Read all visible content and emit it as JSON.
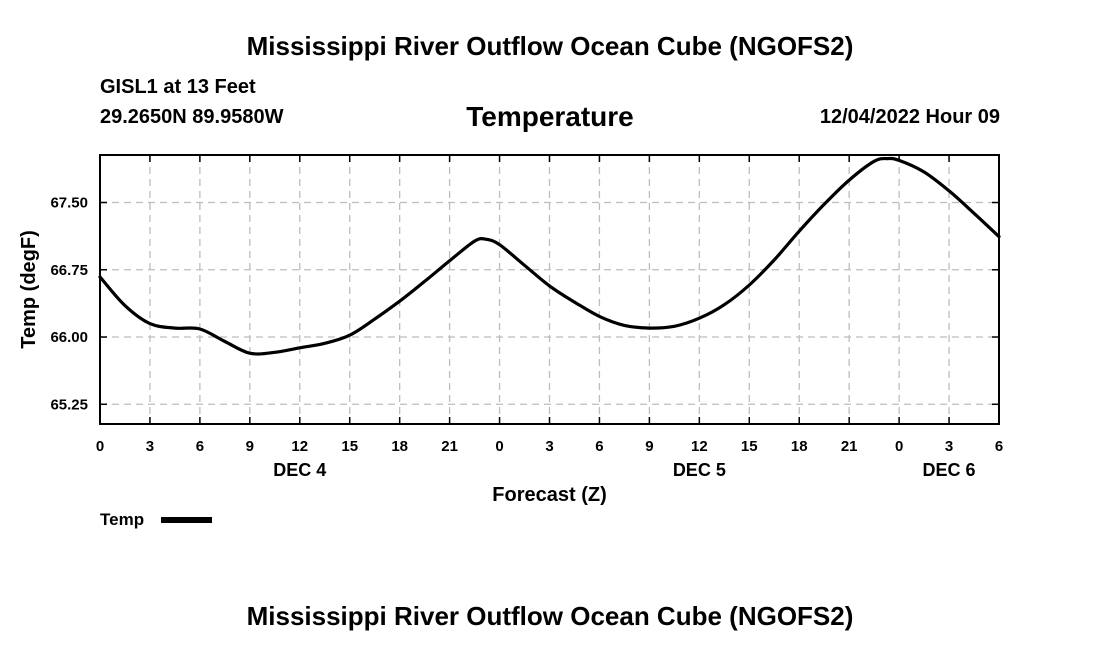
{
  "header": {
    "title": "Mississippi River Outflow Ocean Cube (NGOFS2)",
    "station": "GISL1 at 13 Feet",
    "coords": "29.2650N  89.9580W",
    "variable": "Temperature",
    "datetime": "12/04/2022 Hour 09"
  },
  "footer": {
    "title": "Mississippi River Outflow Ocean Cube (NGOFS2)"
  },
  "chart_data": {
    "type": "line",
    "title": "Temperature",
    "xlabel": "Forecast (Z)",
    "ylabel": "Temp (degF)",
    "xlim": [
      0,
      54
    ],
    "ylim": [
      65.03,
      68.03
    ],
    "yticks": [
      65.25,
      66.0,
      66.75,
      67.5
    ],
    "ytick_labels": [
      "65.25",
      "66.00",
      "66.75",
      "67.50"
    ],
    "xticks": [
      0,
      3,
      6,
      9,
      12,
      15,
      18,
      21,
      24,
      27,
      30,
      33,
      36,
      39,
      42,
      45,
      48,
      51,
      54
    ],
    "xtick_labels": [
      "0",
      "3",
      "6",
      "9",
      "12",
      "15",
      "18",
      "21",
      "0",
      "3",
      "6",
      "9",
      "12",
      "15",
      "18",
      "21",
      "0",
      "3",
      "6"
    ],
    "day_labels": [
      {
        "x": 12,
        "label": "DEC 4"
      },
      {
        "x": 36,
        "label": "DEC 5"
      },
      {
        "x": 51,
        "label": "DEC 6"
      }
    ],
    "grid": true,
    "legend": {
      "position": "bottom-left",
      "entries": [
        "Temp"
      ]
    },
    "series": [
      {
        "name": "Temp",
        "x": [
          0,
          1.5,
          3,
          4.5,
          6,
          7.5,
          9,
          10.5,
          12,
          13.5,
          15,
          16.5,
          18,
          19.5,
          21,
          22.5,
          23.2,
          24,
          25.5,
          27,
          28.5,
          30,
          31.5,
          33,
          34.5,
          36,
          37.5,
          39,
          40.5,
          42,
          43.5,
          45,
          46.5,
          47.3,
          48,
          49.5,
          51,
          52.5,
          54
        ],
        "values": [
          66.67,
          66.35,
          66.15,
          66.1,
          66.09,
          65.95,
          65.82,
          65.83,
          65.88,
          65.93,
          66.02,
          66.2,
          66.4,
          66.62,
          66.85,
          67.07,
          67.09,
          67.03,
          66.8,
          66.57,
          66.39,
          66.23,
          66.13,
          66.1,
          66.12,
          66.21,
          66.36,
          66.58,
          66.86,
          67.18,
          67.48,
          67.75,
          67.96,
          67.99,
          67.97,
          67.84,
          67.63,
          67.38,
          67.12
        ]
      }
    ]
  }
}
